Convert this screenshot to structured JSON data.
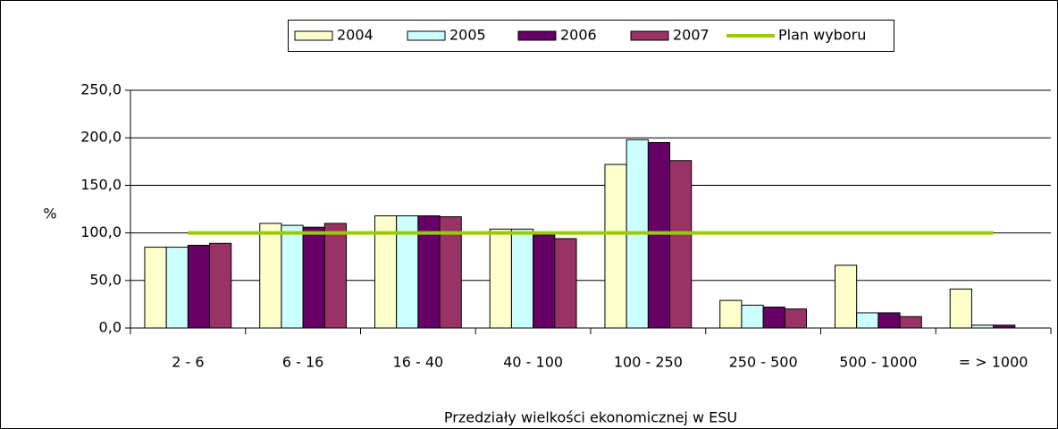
{
  "chart_data": {
    "type": "bar",
    "x_label": "Przedziały wielkości ekonomicznej w ESU",
    "y_label": "%",
    "categories": [
      "2 - 6",
      "6 - 16",
      "16 - 40",
      "40 - 100",
      "100 - 250",
      "250 - 500",
      "500 - 1000",
      "= > 1000"
    ],
    "series": [
      {
        "name": "2004",
        "color": "#ffffcc",
        "values": [
          85,
          110,
          118,
          104,
          172,
          29,
          66,
          41
        ]
      },
      {
        "name": "2005",
        "color": "#ccffff",
        "values": [
          85,
          108,
          118,
          104,
          198,
          24,
          16,
          3
        ]
      },
      {
        "name": "2006",
        "color": "#660066",
        "values": [
          87,
          106,
          118,
          98,
          195,
          22,
          16,
          3
        ]
      },
      {
        "name": "2007",
        "color": "#993366",
        "values": [
          89,
          110,
          117,
          94,
          176,
          20,
          12,
          0
        ]
      },
      {
        "name": "Plan wyboru",
        "color": "#99cc00",
        "type": "line",
        "values": [
          100,
          100,
          100,
          100,
          100,
          100,
          100,
          100
        ]
      }
    ],
    "ylim": [
      0,
      250
    ],
    "yticks": [
      {
        "value": 0,
        "label": "0,0"
      },
      {
        "value": 50,
        "label": "50,0"
      },
      {
        "value": 100,
        "label": "100,0"
      },
      {
        "value": 150,
        "label": "150,0"
      },
      {
        "value": 200,
        "label": "200,0"
      },
      {
        "value": 250,
        "label": "250,0"
      }
    ],
    "grid": true,
    "legend": "top"
  }
}
